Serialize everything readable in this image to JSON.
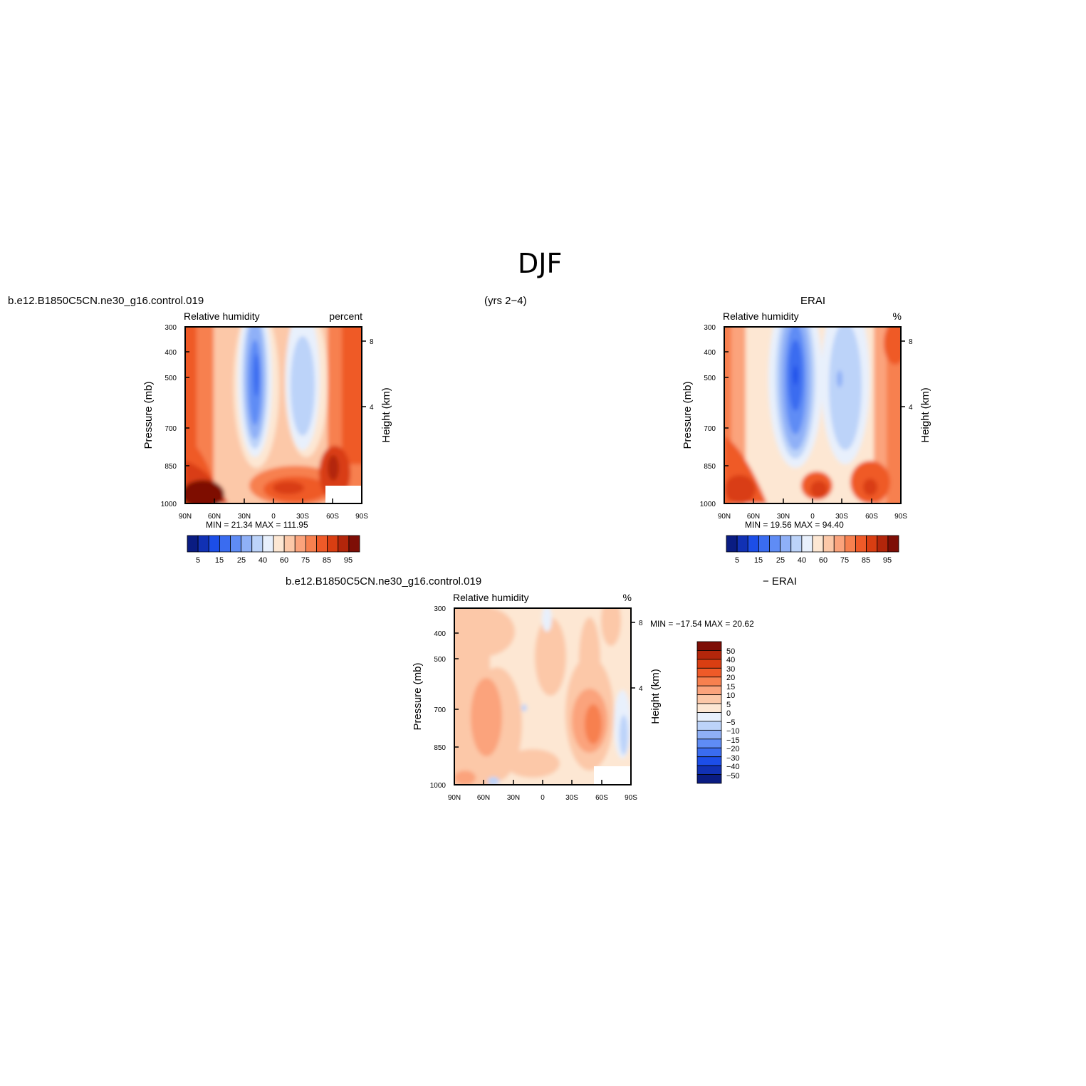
{
  "page": {
    "season": "DJF",
    "years": "(yrs 2−4)",
    "case_name": "b.e12.B1850C5CN.ne30_g16.control.019",
    "obs_name": "ERAI",
    "diff_label": "− ERAI"
  },
  "chart_data": [
    {
      "id": "model",
      "type": "heatmap",
      "title_left": "Relative humidity",
      "title_right": "percent",
      "ylabel": "Pressure (mb)",
      "y2label": "Height (km)",
      "x_ticks": [
        "90N",
        "60N",
        "30N",
        "0",
        "30S",
        "60S",
        "90S"
      ],
      "y_ticks": [
        "300",
        "400",
        "500",
        "700",
        "850",
        "1000"
      ],
      "y2_ticks": [
        "8",
        "4"
      ],
      "min_max": "MIN =   21.34   MAX =  111.95",
      "colorbar_labels": [
        "5",
        "15",
        "25",
        "40",
        "60",
        "75",
        "85",
        "95"
      ],
      "colorbar_colors": [
        "#0a1c82",
        "#1131b4",
        "#1c4ee8",
        "#3a6cf0",
        "#5f8cf5",
        "#8fb0f7",
        "#bcd3f9",
        "#e8f0fc",
        "#fde7d3",
        "#fcc8a8",
        "#fba37c",
        "#f7804f",
        "#ef5a28",
        "#d93e12",
        "#b3260b",
        "#7e0e06"
      ],
      "min": 21.34,
      "max": 111.95
    },
    {
      "id": "obs",
      "type": "heatmap",
      "title_left": "Relative humidity",
      "title_right": "%",
      "ylabel": "Pressure (mb)",
      "y2label": "Height (km)",
      "x_ticks": [
        "90N",
        "60N",
        "30N",
        "0",
        "30S",
        "60S",
        "90S"
      ],
      "y_ticks": [
        "300",
        "400",
        "500",
        "700",
        "850",
        "1000"
      ],
      "y2_ticks": [
        "8",
        "4"
      ],
      "min_max": "MIN =   19.56   MAX =   94.40",
      "colorbar_labels": [
        "5",
        "15",
        "25",
        "40",
        "60",
        "75",
        "85",
        "95"
      ],
      "colorbar_colors": [
        "#0a1c82",
        "#1131b4",
        "#1c4ee8",
        "#3a6cf0",
        "#5f8cf5",
        "#8fb0f7",
        "#bcd3f9",
        "#e8f0fc",
        "#fde7d3",
        "#fcc8a8",
        "#fba37c",
        "#f7804f",
        "#ef5a28",
        "#d93e12",
        "#b3260b",
        "#7e0e06"
      ],
      "min": 19.56,
      "max": 94.4
    },
    {
      "id": "diff",
      "type": "heatmap",
      "title_left": "Relative humidity",
      "title_right": "%",
      "ylabel": "Pressure (mb)",
      "y2label": "Height (km)",
      "x_ticks": [
        "90N",
        "60N",
        "30N",
        "0",
        "30S",
        "60S",
        "90S"
      ],
      "y_ticks": [
        "300",
        "400",
        "500",
        "700",
        "850",
        "1000"
      ],
      "y2_ticks": [
        "8",
        "4"
      ],
      "min_max": "MIN = −17.54   MAX =   20.62",
      "colorbar_labels": [
        "50",
        "40",
        "30",
        "20",
        "15",
        "10",
        "5",
        "0",
        "−5",
        "−10",
        "−15",
        "−20",
        "−30",
        "−40",
        "−50"
      ],
      "colorbar_colors": [
        "#7e0e06",
        "#b3260b",
        "#d93e12",
        "#ef5a28",
        "#f7804f",
        "#fba37c",
        "#fcc8a8",
        "#fde7d3",
        "#e8f0fc",
        "#bcd3f9",
        "#8fb0f7",
        "#5f8cf5",
        "#3a6cf0",
        "#1c4ee8",
        "#1131b4",
        "#0a1c82"
      ],
      "min": -17.54,
      "max": 20.62
    }
  ]
}
